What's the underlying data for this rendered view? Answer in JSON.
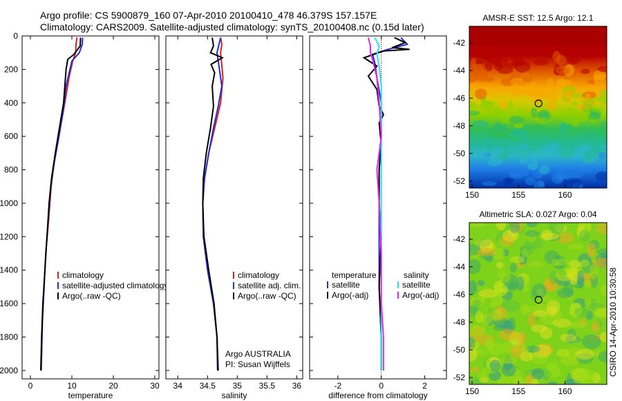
{
  "header": {
    "line1": "Argo profile: CS 5900879_160 07-Apr-2010 20100410_478 46.379S 157.157E",
    "line2": "Climatology: CARS2009. Satellite-adjusted climatology: synTS_20100408.nc (0.15d later)"
  },
  "side_label": "CSIRO 14-Apr-2010 10:30:58",
  "colors": {
    "climatology": "#e41a1c",
    "satellite": "#1f2fd6",
    "argo": "#000000",
    "sal_satellite": "#22e3ee",
    "sal_argo": "#ee22ee"
  },
  "chart_data": [
    {
      "type": "line",
      "id": "temperature",
      "xlabel": "temperature",
      "ylabel": "",
      "xlim": [
        -2,
        31
      ],
      "ylim": [
        2050,
        0
      ],
      "xticks": [
        0,
        10,
        20,
        30
      ],
      "yticks": [
        0,
        200,
        400,
        600,
        800,
        1000,
        1200,
        1400,
        1600,
        1800,
        2000
      ],
      "legend": {
        "placement": "lower-middle",
        "entries": [
          "climatology",
          "satellite-adjusted climatology",
          "Argo(..raw -QC)"
        ]
      },
      "series": [
        {
          "name": "climatology",
          "color": "#e41a1c",
          "points": [
            [
              11.2,
              10
            ],
            [
              11.0,
              50
            ],
            [
              10.9,
              100
            ],
            [
              10.2,
              150
            ],
            [
              9.3,
              250
            ],
            [
              8.3,
              400
            ],
            [
              7.2,
              550
            ],
            [
              6.0,
              700
            ],
            [
              5.0,
              900
            ],
            [
              4.4,
              1100
            ],
            [
              3.7,
              1300
            ],
            [
              3.3,
              1500
            ],
            [
              2.9,
              1700
            ],
            [
              2.7,
              1900
            ],
            [
              2.6,
              2000
            ]
          ]
        },
        {
          "name": "satellite-adjusted climatology",
          "color": "#1f2fd6",
          "points": [
            [
              12.6,
              10
            ],
            [
              12.5,
              50
            ],
            [
              11.8,
              100
            ],
            [
              10.0,
              150
            ],
            [
              8.6,
              300
            ],
            [
              7.9,
              450
            ],
            [
              6.9,
              600
            ],
            [
              5.8,
              750
            ],
            [
              4.9,
              900
            ],
            [
              4.3,
              1100
            ],
            [
              3.7,
              1300
            ],
            [
              3.3,
              1500
            ],
            [
              2.9,
              1700
            ],
            [
              2.7,
              1900
            ],
            [
              2.6,
              2000
            ]
          ]
        },
        {
          "name": "Argo(..raw -QC)",
          "color": "#000000",
          "points": [
            [
              12.1,
              10
            ],
            [
              12.0,
              60
            ],
            [
              10.5,
              110
            ],
            [
              9.0,
              140
            ],
            [
              8.6,
              200
            ],
            [
              8.3,
              300
            ],
            [
              8.0,
              400
            ],
            [
              7.0,
              550
            ],
            [
              6.0,
              700
            ],
            [
              5.1,
              850
            ],
            [
              4.5,
              1000
            ],
            [
              4.0,
              1200
            ],
            [
              3.5,
              1400
            ],
            [
              3.0,
              1600
            ],
            [
              2.7,
              1800
            ],
            [
              2.5,
              2000
            ]
          ]
        }
      ]
    },
    {
      "type": "line",
      "id": "salinity",
      "xlabel": "salinity",
      "ylabel": "",
      "xlim": [
        33.8,
        36.1
      ],
      "ylim": [
        2050,
        0
      ],
      "xticks": [
        34,
        34.5,
        35,
        35.5,
        36
      ],
      "legend": {
        "placement": "lower-right",
        "entries": [
          "climatology",
          "satellite adj. clim.",
          "Argo(..raw -QC)"
        ]
      },
      "annotations": [
        "Argo AUSTRALIA",
        "PI: Susan Wijffels"
      ],
      "series": [
        {
          "name": "climatology",
          "color": "#e41a1c",
          "points": [
            [
              34.72,
              10
            ],
            [
              34.74,
              50
            ],
            [
              34.72,
              100
            ],
            [
              34.76,
              250
            ],
            [
              34.72,
              400
            ],
            [
              34.62,
              550
            ],
            [
              34.52,
              700
            ],
            [
              34.45,
              850
            ],
            [
              34.42,
              1000
            ],
            [
              34.43,
              1200
            ],
            [
              34.5,
              1400
            ],
            [
              34.6,
              1600
            ],
            [
              34.66,
              1800
            ],
            [
              34.68,
              2000
            ]
          ]
        },
        {
          "name": "satellite adj. clim.",
          "color": "#1f2fd6",
          "points": [
            [
              34.72,
              10
            ],
            [
              34.66,
              100
            ],
            [
              34.7,
              200
            ],
            [
              34.74,
              300
            ],
            [
              34.68,
              420
            ],
            [
              34.6,
              550
            ],
            [
              34.52,
              700
            ],
            [
              34.45,
              850
            ],
            [
              34.42,
              1000
            ],
            [
              34.43,
              1200
            ],
            [
              34.5,
              1400
            ],
            [
              34.6,
              1600
            ],
            [
              34.66,
              1800
            ],
            [
              34.68,
              2000
            ]
          ]
        },
        {
          "name": "Argo(..raw -QC)",
          "color": "#000000",
          "points": [
            [
              34.58,
              10
            ],
            [
              34.6,
              60
            ],
            [
              34.55,
              100
            ],
            [
              34.75,
              130
            ],
            [
              34.56,
              170
            ],
            [
              34.62,
              220
            ],
            [
              34.58,
              300
            ],
            [
              34.6,
              420
            ],
            [
              34.55,
              550
            ],
            [
              34.48,
              700
            ],
            [
              34.43,
              850
            ],
            [
              34.42,
              1000
            ],
            [
              34.44,
              1200
            ],
            [
              34.52,
              1400
            ],
            [
              34.61,
              1600
            ],
            [
              34.66,
              1800
            ],
            [
              34.67,
              2000
            ]
          ]
        }
      ]
    },
    {
      "type": "line",
      "id": "difference",
      "xlabel": "difference from climatology",
      "ylabel": "",
      "xlim": [
        -3.3,
        3
      ],
      "ylim": [
        2050,
        0
      ],
      "xticks": [
        -2,
        0,
        2
      ],
      "legend": {
        "placement": "lower",
        "entries": [
          "temperature",
          "satellite",
          "Argo(-adj)",
          "salinity",
          "satellite",
          "Argo(-adj)"
        ]
      },
      "series": [
        {
          "name": "satellite",
          "color": "#1f2fd6",
          "points": [
            [
              0.9,
              10
            ],
            [
              1.2,
              50
            ],
            [
              0.3,
              80
            ],
            [
              -0.4,
              110
            ],
            [
              -0.3,
              160
            ],
            [
              -0.2,
              250
            ],
            [
              0.0,
              400
            ],
            [
              0.0,
              600
            ],
            [
              -0.1,
              800
            ],
            [
              -0.1,
              1000
            ],
            [
              -0.1,
              1200
            ],
            [
              -0.1,
              1500
            ],
            [
              0.0,
              1800
            ],
            [
              0.0,
              2000
            ]
          ]
        },
        {
          "name": "Argo(-adj)",
          "color": "#000000",
          "points": [
            [
              0.6,
              10
            ],
            [
              1.1,
              40
            ],
            [
              0.5,
              70
            ],
            [
              1.3,
              80
            ],
            [
              0.1,
              90
            ],
            [
              -0.8,
              130
            ],
            [
              -0.2,
              180
            ],
            [
              -0.6,
              240
            ],
            [
              -0.2,
              320
            ],
            [
              -0.1,
              420
            ],
            [
              0.1,
              470
            ],
            [
              -0.1,
              520
            ],
            [
              0.0,
              650
            ],
            [
              -0.1,
              800
            ],
            [
              -0.1,
              1000
            ],
            [
              0.0,
              1200
            ],
            [
              -0.1,
              1500
            ],
            [
              0.0,
              1800
            ],
            [
              0.0,
              2000
            ]
          ]
        },
        {
          "name": "satellite",
          "color": "#22e3ee",
          "points": [
            [
              -0.3,
              10
            ],
            [
              -0.1,
              60
            ],
            [
              -0.2,
              110
            ],
            [
              -0.1,
              180
            ],
            [
              0.0,
              300
            ],
            [
              0.0,
              500
            ],
            [
              0.0,
              800
            ],
            [
              0.0,
              1100
            ],
            [
              0.0,
              1400
            ],
            [
              0.0,
              1700
            ],
            [
              0.0,
              2000
            ]
          ]
        },
        {
          "name": "Argo(-adj)",
          "color": "#ee22ee",
          "points": [
            [
              -0.6,
              10
            ],
            [
              -0.5,
              60
            ],
            [
              -0.5,
              100
            ],
            [
              -0.4,
              140
            ],
            [
              -0.2,
              250
            ],
            [
              -0.1,
              400
            ],
            [
              0.0,
              600
            ],
            [
              -0.2,
              800
            ],
            [
              -0.1,
              1000
            ],
            [
              0.0,
              1300
            ],
            [
              0.0,
              1600
            ],
            [
              0.1,
              1800
            ],
            [
              0.1,
              2000
            ]
          ]
        }
      ]
    },
    {
      "type": "heatmap",
      "id": "sst-map",
      "title": "AMSR-E SST: 12.5 Argo: 12.1",
      "xlim": [
        149.7,
        164.5
      ],
      "ylim": [
        -52.5,
        -40.8
      ],
      "xticks": [
        150,
        155,
        160
      ],
      "yticks": [
        -42,
        -44,
        -46,
        -48,
        -50,
        -52
      ],
      "marker": {
        "lon": 157.16,
        "lat": -46.38
      }
    },
    {
      "type": "heatmap",
      "id": "sla-map",
      "title": "Altimetric SLA: 0.027 Argo: 0.04",
      "xlim": [
        149.7,
        164.5
      ],
      "ylim": [
        -52.5,
        -40.8
      ],
      "xticks": [
        150,
        155,
        160
      ],
      "yticks": [
        -42,
        -44,
        -46,
        -48,
        -50,
        -52
      ],
      "marker": {
        "lon": 157.16,
        "lat": -46.38
      }
    }
  ]
}
